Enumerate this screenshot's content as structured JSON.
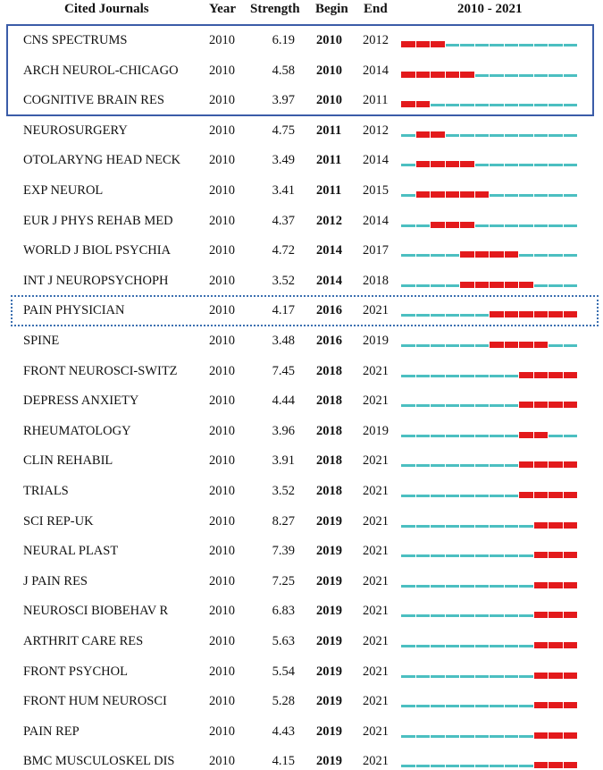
{
  "chart_data": {
    "type": "table",
    "headers": {
      "journal": "Cited Journals",
      "year": "Year",
      "strength": "Strength",
      "begin": "Begin",
      "end": "End",
      "range": "2010 - 2021"
    },
    "range_start": 2010,
    "range_end": 2021,
    "colors": {
      "burst": "#e31a1c",
      "baseline": "#4cbfc1",
      "highlight_box": "#3b5ca8"
    },
    "rows": [
      {
        "journal": "CNS SPECTRUMS",
        "year": "2010",
        "strength": "6.19",
        "begin": "2010",
        "end": "2012"
      },
      {
        "journal": "ARCH NEUROL-CHICAGO",
        "year": "2010",
        "strength": "4.58",
        "begin": "2010",
        "end": "2014"
      },
      {
        "journal": "COGNITIVE BRAIN RES",
        "year": "2010",
        "strength": "3.97",
        "begin": "2010",
        "end": "2011"
      },
      {
        "journal": "NEUROSURGERY",
        "year": "2010",
        "strength": "4.75",
        "begin": "2011",
        "end": "2012"
      },
      {
        "journal": "OTOLARYNG HEAD NECK",
        "year": "2010",
        "strength": "3.49",
        "begin": "2011",
        "end": "2014"
      },
      {
        "journal": "EXP NEUROL",
        "year": "2010",
        "strength": "3.41",
        "begin": "2011",
        "end": "2015"
      },
      {
        "journal": "EUR J PHYS REHAB MED",
        "year": "2010",
        "strength": "4.37",
        "begin": "2012",
        "end": "2014"
      },
      {
        "journal": "WORLD J BIOL PSYCHIA",
        "year": "2010",
        "strength": "4.72",
        "begin": "2014",
        "end": "2017"
      },
      {
        "journal": "INT J NEUROPSYCHOPH",
        "year": "2010",
        "strength": "3.52",
        "begin": "2014",
        "end": "2018"
      },
      {
        "journal": "PAIN PHYSICIAN",
        "year": "2010",
        "strength": "4.17",
        "begin": "2016",
        "end": "2021"
      },
      {
        "journal": "SPINE",
        "year": "2010",
        "strength": "3.48",
        "begin": "2016",
        "end": "2019"
      },
      {
        "journal": "FRONT NEUROSCI-SWITZ",
        "year": "2010",
        "strength": "7.45",
        "begin": "2018",
        "end": "2021"
      },
      {
        "journal": "DEPRESS ANXIETY",
        "year": "2010",
        "strength": "4.44",
        "begin": "2018",
        "end": "2021"
      },
      {
        "journal": "RHEUMATOLOGY",
        "year": "2010",
        "strength": "3.96",
        "begin": "2018",
        "end": "2019"
      },
      {
        "journal": "CLIN REHABIL",
        "year": "2010",
        "strength": "3.91",
        "begin": "2018",
        "end": "2021"
      },
      {
        "journal": "TRIALS",
        "year": "2010",
        "strength": "3.52",
        "begin": "2018",
        "end": "2021"
      },
      {
        "journal": "SCI REP-UK",
        "year": "2010",
        "strength": "8.27",
        "begin": "2019",
        "end": "2021"
      },
      {
        "journal": "NEURAL PLAST",
        "year": "2010",
        "strength": "7.39",
        "begin": "2019",
        "end": "2021"
      },
      {
        "journal": "J PAIN RES",
        "year": "2010",
        "strength": "7.25",
        "begin": "2019",
        "end": "2021"
      },
      {
        "journal": "NEUROSCI BIOBEHAV R",
        "year": "2010",
        "strength": "6.83",
        "begin": "2019",
        "end": "2021"
      },
      {
        "journal": "ARTHRIT CARE RES",
        "year": "2010",
        "strength": "5.63",
        "begin": "2019",
        "end": "2021"
      },
      {
        "journal": "FRONT PSYCHOL",
        "year": "2010",
        "strength": "5.54",
        "begin": "2019",
        "end": "2021"
      },
      {
        "journal": "FRONT HUM NEUROSCI",
        "year": "2010",
        "strength": "5.28",
        "begin": "2019",
        "end": "2021"
      },
      {
        "journal": "PAIN REP",
        "year": "2010",
        "strength": "4.43",
        "begin": "2019",
        "end": "2021"
      },
      {
        "journal": "BMC MUSCULOSKEL DIS",
        "year": "2010",
        "strength": "4.15",
        "begin": "2019",
        "end": "2021"
      }
    ],
    "highlights": [
      {
        "style": "solid",
        "rows": [
          0,
          2
        ]
      },
      {
        "style": "dotted",
        "rows": [
          9,
          9
        ]
      }
    ]
  }
}
